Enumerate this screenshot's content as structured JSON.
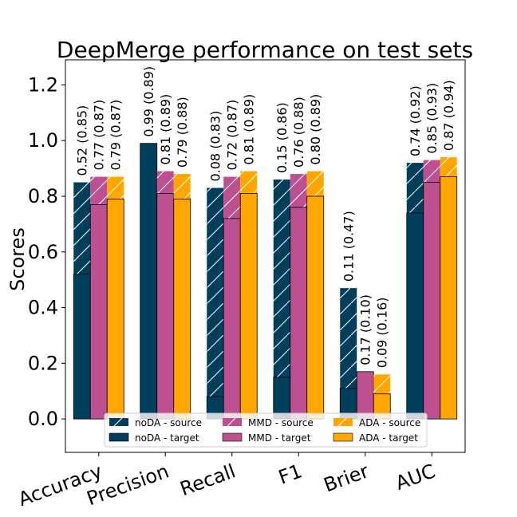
{
  "chart_data": {
    "type": "bar",
    "title": "DeepMerge performance on test sets",
    "xlabel": "",
    "ylabel": "Scores",
    "ylim": [
      -0.12,
      1.29
    ],
    "yticks": [
      "0.0",
      "0.2",
      "0.4",
      "0.6",
      "0.8",
      "1.0",
      "1.2"
    ],
    "ytick_values": [
      0.0,
      0.2,
      0.4,
      0.6,
      0.8,
      1.0,
      1.2
    ],
    "categories": [
      "Accuracy",
      "Precision",
      "Recall",
      "F1",
      "Brier",
      "AUC"
    ],
    "series": [
      {
        "name": "noDA",
        "color": "#003f5c",
        "target": [
          0.52,
          0.99,
          0.08,
          0.15,
          0.11,
          0.74
        ],
        "source": [
          0.85,
          0.89,
          0.83,
          0.86,
          0.47,
          0.92
        ],
        "labels": [
          "0.52 (0.85)",
          "0.99 (0.89)",
          "0.08 (0.83)",
          "0.15 (0.86)",
          "0.11 (0.47)",
          "0.74 (0.92)"
        ]
      },
      {
        "name": "MMD",
        "color": "#bc5090",
        "target": [
          0.77,
          0.81,
          0.72,
          0.76,
          0.17,
          0.85
        ],
        "source": [
          0.87,
          0.89,
          0.87,
          0.88,
          0.1,
          0.93
        ],
        "labels": [
          "0.77 (0.87)",
          "0.81 (0.89)",
          "0.72 (0.87)",
          "0.76 (0.88)",
          "0.17 (0.10)",
          "0.85 (0.93)"
        ]
      },
      {
        "name": "ADA",
        "color": "#ffa600",
        "target": [
          0.79,
          0.79,
          0.81,
          0.8,
          0.09,
          0.87
        ],
        "source": [
          0.87,
          0.88,
          0.89,
          0.89,
          0.16,
          0.94
        ],
        "labels": [
          "0.79 (0.87)",
          "0.79 (0.88)",
          "0.81 (0.89)",
          "0.80 (0.89)",
          "0.09 (0.16)",
          "0.87 (0.94)"
        ]
      }
    ],
    "legend": {
      "position": "lower center",
      "entries": [
        {
          "label": "noDA - source",
          "series": 0,
          "kind": "source"
        },
        {
          "label": "MMD - source",
          "series": 1,
          "kind": "source"
        },
        {
          "label": "ADA - source",
          "series": 2,
          "kind": "source"
        },
        {
          "label": "noDA - target",
          "series": 0,
          "kind": "target"
        },
        {
          "label": "MMD - target",
          "series": 1,
          "kind": "target"
        },
        {
          "label": "ADA - target",
          "series": 2,
          "kind": "target"
        }
      ]
    }
  }
}
